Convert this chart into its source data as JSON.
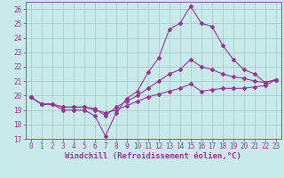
{
  "xlabel": "Windchill (Refroidissement éolien,°C)",
  "background_color": "#c8eaea",
  "grid_color": "#a0c8c0",
  "line_color": "#993399",
  "xlim": [
    -0.5,
    23.5
  ],
  "ylim": [
    17,
    26.5
  ],
  "xticks": [
    0,
    1,
    2,
    3,
    4,
    5,
    6,
    7,
    8,
    9,
    10,
    11,
    12,
    13,
    14,
    15,
    16,
    17,
    18,
    19,
    20,
    21,
    22,
    23
  ],
  "yticks": [
    17,
    18,
    19,
    20,
    21,
    22,
    23,
    24,
    25,
    26
  ],
  "line1_x": [
    0,
    1,
    2,
    3,
    4,
    5,
    6,
    7,
    8,
    9,
    10,
    11,
    12,
    13,
    14,
    15,
    16,
    17,
    18,
    19,
    20,
    21,
    22,
    23
  ],
  "line1_y": [
    19.9,
    19.4,
    19.4,
    19.0,
    19.0,
    19.0,
    18.6,
    17.2,
    18.8,
    19.8,
    20.3,
    21.6,
    22.6,
    24.6,
    25.0,
    26.2,
    25.0,
    24.8,
    23.5,
    22.5,
    21.8,
    21.5,
    20.9,
    21.1
  ],
  "line2_x": [
    0,
    1,
    2,
    3,
    4,
    5,
    6,
    7,
    8,
    9,
    10,
    11,
    12,
    13,
    14,
    15,
    16,
    17,
    18,
    19,
    20,
    21,
    22,
    23
  ],
  "line2_y": [
    19.9,
    19.4,
    19.4,
    19.2,
    19.2,
    19.2,
    19.1,
    18.6,
    19.2,
    19.6,
    20.0,
    20.5,
    21.0,
    21.5,
    21.8,
    22.5,
    22.0,
    21.8,
    21.5,
    21.3,
    21.2,
    21.0,
    20.9,
    21.1
  ],
  "line3_x": [
    0,
    1,
    2,
    3,
    4,
    5,
    6,
    7,
    8,
    9,
    10,
    11,
    12,
    13,
    14,
    15,
    16,
    17,
    18,
    19,
    20,
    21,
    22,
    23
  ],
  "line3_y": [
    19.9,
    19.4,
    19.4,
    19.2,
    19.2,
    19.2,
    19.0,
    18.8,
    19.0,
    19.3,
    19.6,
    19.9,
    20.1,
    20.3,
    20.5,
    20.8,
    20.3,
    20.4,
    20.5,
    20.5,
    20.5,
    20.6,
    20.7,
    21.1
  ],
  "xlabel_fontsize": 6.5,
  "tick_fontsize": 5.5,
  "marker_size": 2.0,
  "line_width": 0.8
}
